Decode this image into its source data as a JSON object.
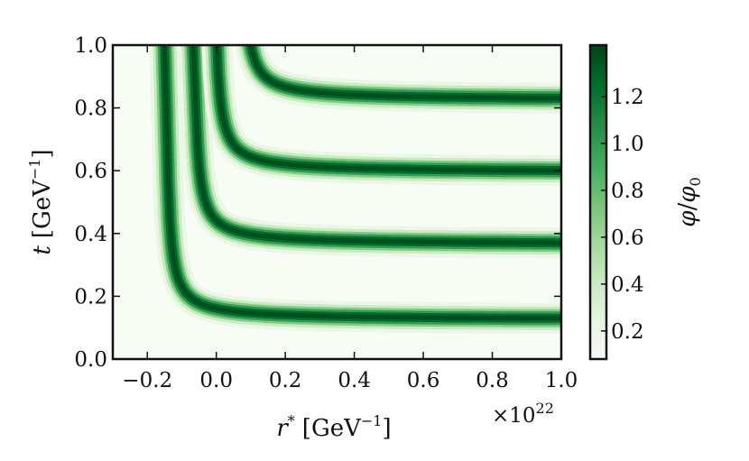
{
  "chart_data": {
    "type": "heatmap",
    "xlabel_main": "r",
    "xlabel_sup": "*",
    "xlabel_unit": "[GeV",
    "xlabel_unit_exp": "−1",
    "xlabel_unit_end": "]",
    "ylabel_main": "t",
    "ylabel_unit": "[GeV",
    "ylabel_unit_exp": "−1",
    "ylabel_unit_end": "]",
    "x_multiplier": "×10",
    "x_multiplier_exp": "22",
    "xlim": [
      -0.3,
      1.0
    ],
    "ylim": [
      0.0,
      1.0
    ],
    "xticks": [
      -0.2,
      0.0,
      0.2,
      0.4,
      0.6,
      0.8,
      1.0
    ],
    "xtick_labels": [
      "−0.2",
      "0.0",
      "0.2",
      "0.4",
      "0.6",
      "0.8",
      "1.0"
    ],
    "yticks": [
      0.0,
      0.2,
      0.4,
      0.6,
      0.8,
      1.0
    ],
    "ytick_labels": [
      "0.0",
      "0.2",
      "0.4",
      "0.6",
      "0.8",
      "1.0"
    ],
    "colorbar": {
      "label_num": "φ",
      "label_den": "φ",
      "label_den_sub": "0",
      "range": [
        0.08,
        1.42
      ],
      "ticks": [
        0.2,
        0.4,
        0.6,
        0.8,
        1.0,
        1.2
      ],
      "tick_labels": [
        "0.2",
        "0.4",
        "0.6",
        "0.8",
        "1.0",
        "1.2"
      ],
      "colormap": "Greens",
      "color_low": "#f7fcf5",
      "color_high": "#00441b"
    },
    "bands": [
      {
        "t_asymptote": 0.125,
        "r_turn": -0.14,
        "peak": 1.4
      },
      {
        "t_asymptote": 0.365,
        "r_turn": -0.06,
        "peak": 1.4
      },
      {
        "t_asymptote": 0.595,
        "r_turn": 0.0,
        "peak": 1.4
      },
      {
        "t_asymptote": 0.825,
        "r_turn": 0.08,
        "peak": 1.4
      }
    ]
  }
}
